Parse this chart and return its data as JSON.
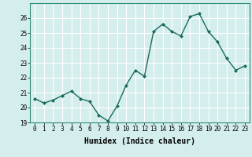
{
  "x": [
    0,
    1,
    2,
    3,
    4,
    5,
    6,
    7,
    8,
    9,
    10,
    11,
    12,
    13,
    14,
    15,
    16,
    17,
    18,
    19,
    20,
    21,
    22,
    23
  ],
  "y": [
    20.6,
    20.3,
    20.5,
    20.8,
    21.1,
    20.6,
    20.4,
    19.5,
    19.1,
    20.1,
    21.5,
    22.5,
    22.1,
    25.1,
    25.6,
    25.1,
    24.8,
    26.1,
    26.3,
    25.1,
    24.4,
    23.3,
    22.5,
    22.8
  ],
  "xlabel": "Humidex (Indice chaleur)",
  "ylim": [
    19,
    27
  ],
  "xlim_min": -0.5,
  "xlim_max": 23.5,
  "yticks": [
    19,
    20,
    21,
    22,
    23,
    24,
    25,
    26
  ],
  "xticks": [
    0,
    1,
    2,
    3,
    4,
    5,
    6,
    7,
    8,
    9,
    10,
    11,
    12,
    13,
    14,
    15,
    16,
    17,
    18,
    19,
    20,
    21,
    22,
    23
  ],
  "line_color": "#1a6b5a",
  "marker": "D",
  "marker_size": 2.5,
  "bg_color": "#d4eeed",
  "grid_color": "#ffffff",
  "axes_bg": "#d4eeed",
  "xlabel_fontsize": 7,
  "tick_fontsize": 5.5
}
